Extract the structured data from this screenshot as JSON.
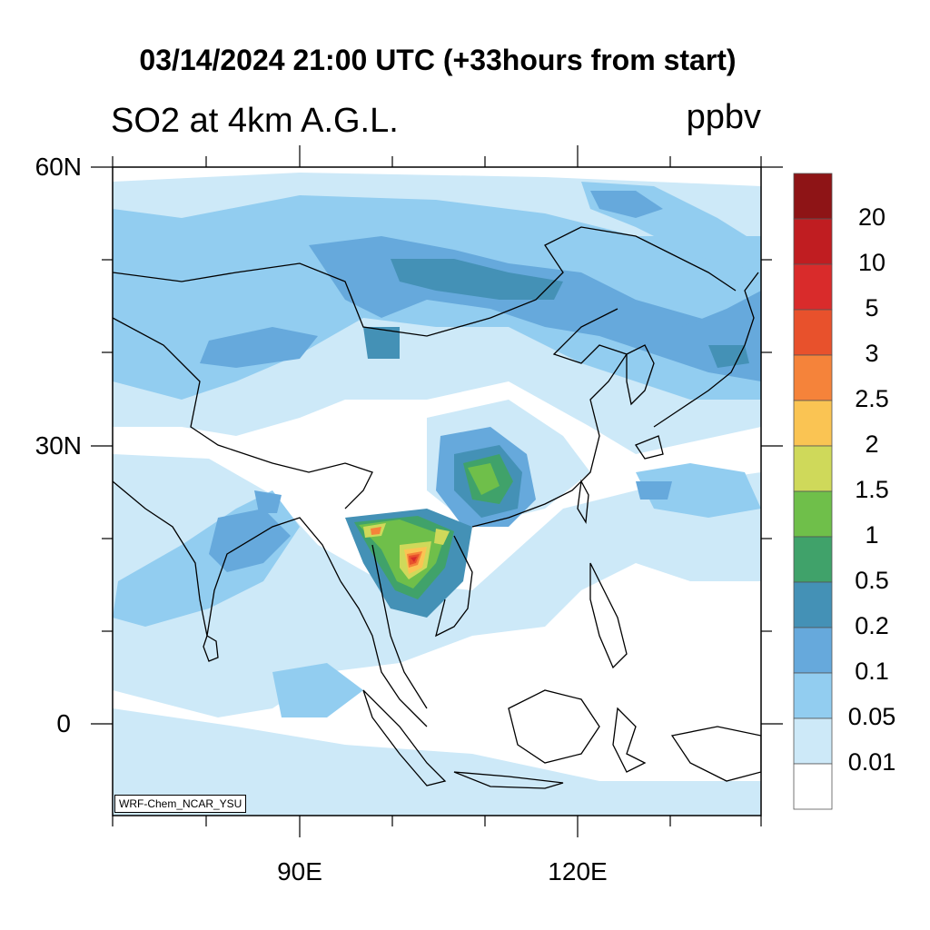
{
  "title": "03/14/2024 21:00 UTC (+33hours from start)",
  "variable": "SO2 at 4km A.G.L.",
  "units": "ppbv",
  "credit": "WRF-Chem_NCAR_YSU",
  "lat_labels": [
    "60N",
    "30N",
    "0"
  ],
  "lon_labels": [
    "90E",
    "120E"
  ],
  "colorbar": {
    "labels": [
      "20",
      "10",
      "5",
      "3",
      "2.5",
      "2",
      "1.5",
      "1",
      "0.5",
      "0.2",
      "0.1",
      "0.05",
      "0.01"
    ],
    "colors": [
      "#8e1416",
      "#c01d21",
      "#d92b2b",
      "#e8512c",
      "#f5833a",
      "#fac453",
      "#cfd95a",
      "#6fbf4a",
      "#40a26a",
      "#4491b6",
      "#66a9dc",
      "#92cdf0",
      "#cde9f8",
      "#ffffff"
    ]
  }
}
